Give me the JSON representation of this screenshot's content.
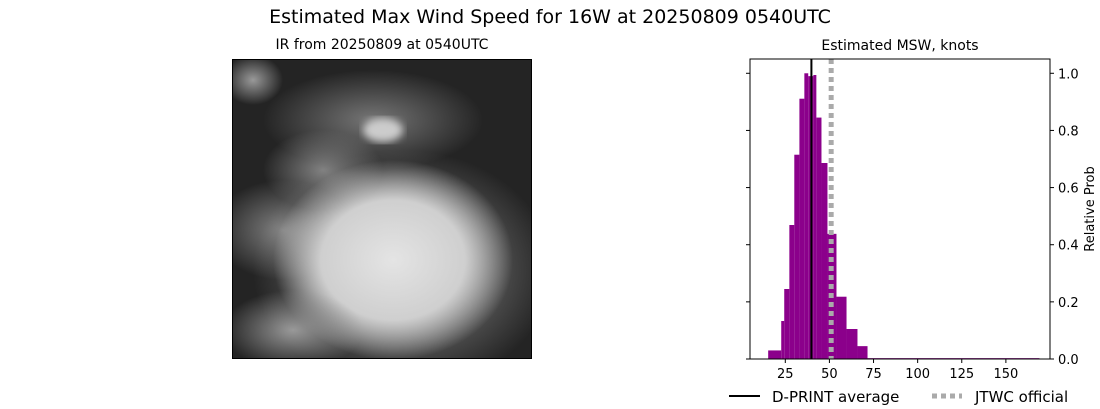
{
  "suptitle": "Estimated Max Wind Speed for 16W at 20250809 0540UTC",
  "ir_panel": {
    "title": "IR from 20250809 at 0540UTC"
  },
  "chart_data": {
    "type": "bar",
    "title": "Estimated MSW, knots",
    "xlabel": "",
    "ylabel": "Relative Prob",
    "xlim": [
      5,
      175
    ],
    "ylim": [
      0,
      1.05
    ],
    "xticks": [
      25,
      50,
      75,
      100,
      125,
      150
    ],
    "yticks": [
      "0.0",
      "0.2",
      "0.4",
      "0.6",
      "0.8",
      "1.0"
    ],
    "bin_edges": [
      15.3,
      22.7,
      24.4,
      27.3,
      30.1,
      33.0,
      35.8,
      38.0,
      40.9,
      42.6,
      45.5,
      48.9,
      54.0,
      59.7,
      65.9,
      71.6,
      169
    ],
    "values": [
      0.03,
      0.133,
      0.245,
      0.469,
      0.715,
      0.911,
      1.0,
      0.99,
      0.994,
      0.845,
      0.686,
      0.438,
      0.218,
      0.105,
      0.045,
      0.003
    ],
    "bar_color": "#8b008b",
    "grid": false,
    "lines": [
      {
        "name": "D-PRINT average",
        "x": 39.8,
        "color": "#000000",
        "style": "solid"
      },
      {
        "name": "JTWC official",
        "x": 51,
        "color": "#aaaaaa",
        "style": "dotted"
      }
    ],
    "legend_position": "bottom"
  }
}
